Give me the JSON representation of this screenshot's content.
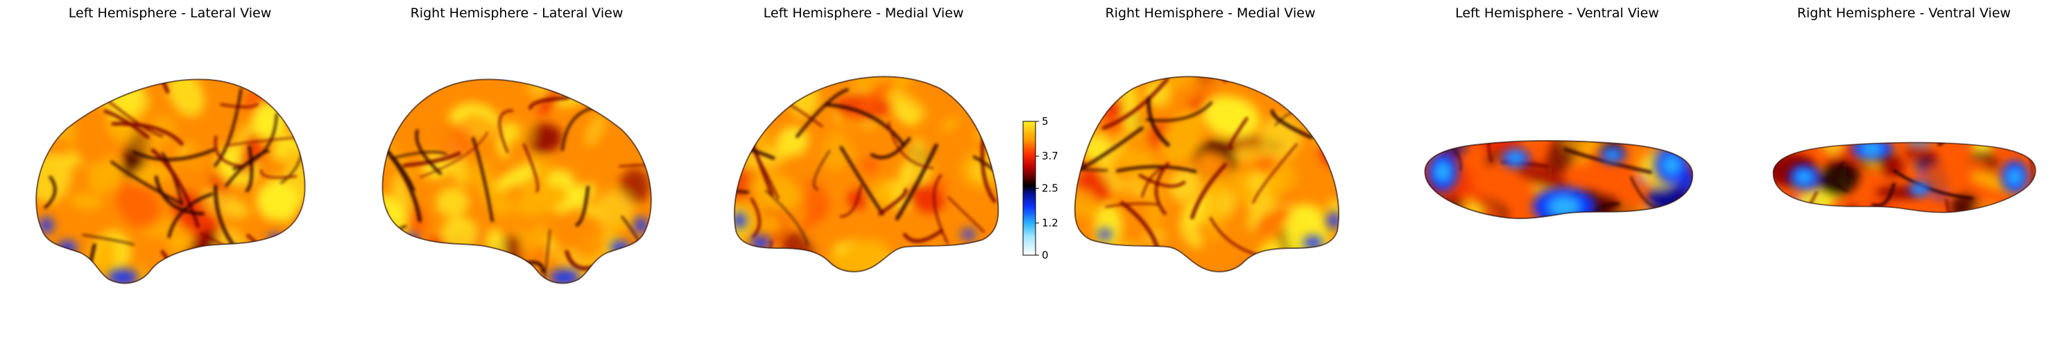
{
  "panels": [
    {
      "title": "Left Hemisphere - Lateral View"
    },
    {
      "title": "Right Hemisphere - Lateral View"
    },
    {
      "title": "Left Hemisphere - Medial View"
    },
    {
      "title": "Right Hemisphere - Medial View"
    },
    {
      "title": "Left Hemisphere - Ventral View"
    },
    {
      "title": "Right Hemisphere - Ventral View"
    }
  ],
  "colorbar": {
    "min": 0,
    "max": 5,
    "ticks": [
      "5",
      "3.7",
      "2.5",
      "1.2",
      "0"
    ],
    "tick_values": [
      5,
      3.7,
      2.5,
      1.2,
      0
    ],
    "colormap_stops": [
      {
        "value": 0,
        "color": "#ffffff"
      },
      {
        "value": 0.7,
        "color": "#9fe6ff"
      },
      {
        "value": 1.2,
        "color": "#2ab0ff"
      },
      {
        "value": 1.8,
        "color": "#0b34ff"
      },
      {
        "value": 2.3,
        "color": "#071090"
      },
      {
        "value": 2.6,
        "color": "#000000"
      },
      {
        "value": 2.9,
        "color": "#5a0000"
      },
      {
        "value": 3.3,
        "color": "#c00000"
      },
      {
        "value": 3.8,
        "color": "#ff3300"
      },
      {
        "value": 4.3,
        "color": "#ff9900"
      },
      {
        "value": 5,
        "color": "#ffee22"
      }
    ]
  }
}
